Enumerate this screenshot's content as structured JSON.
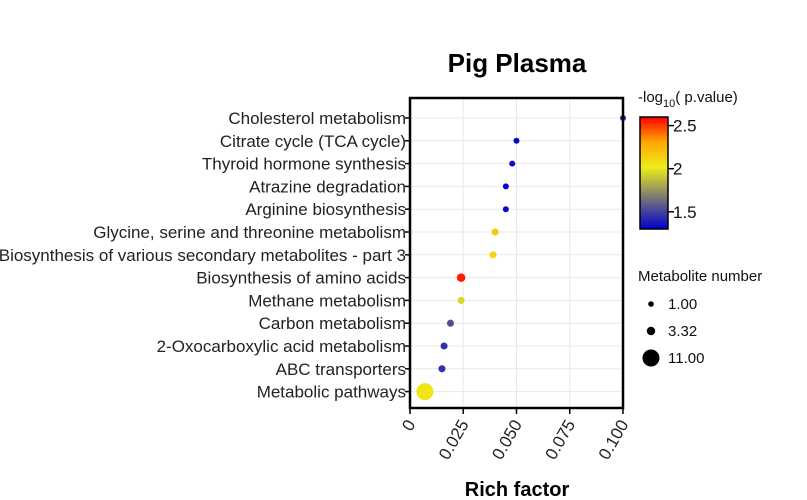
{
  "chart_data": {
    "type": "scatter",
    "title": "Pig Plasma",
    "xlabel": "Rich factor",
    "ylabel": "",
    "xlim": [
      0,
      0.1
    ],
    "xticks": [
      {
        "value": 0,
        "label": "0"
      },
      {
        "value": 0.025,
        "label": "0.025"
      },
      {
        "value": 0.05,
        "label": "0.050"
      },
      {
        "value": 0.075,
        "label": "0.075"
      },
      {
        "value": 0.1,
        "label": "0.100"
      }
    ],
    "categories": [
      "Cholesterol metabolism",
      "Citrate cycle (TCA cycle)",
      "Thyroid hormone synthesis",
      "Atrazine degradation",
      "Arginine biosynthesis",
      "Glycine, serine and threonine metabolism",
      "Biosynthesis of various secondary metabolites - part 3",
      "Biosynthesis of amino acids",
      "Methane metabolism",
      "Carbon metabolism",
      "2-Oxocarboxylic acid metabolism",
      "ABC transporters",
      "Metabolic pathways"
    ],
    "points": [
      {
        "category": "Cholesterol metabolism",
        "rich_factor": 0.1,
        "neg_log10_p": 1.4,
        "metabolite_number": 1
      },
      {
        "category": "Citrate cycle (TCA cycle)",
        "rich_factor": 0.05,
        "neg_log10_p": 1.32,
        "metabolite_number": 1
      },
      {
        "category": "Thyroid hormone synthesis",
        "rich_factor": 0.048,
        "neg_log10_p": 1.33,
        "metabolite_number": 1
      },
      {
        "category": "Atrazine degradation",
        "rich_factor": 0.045,
        "neg_log10_p": 1.3,
        "metabolite_number": 1
      },
      {
        "category": "Arginine biosynthesis",
        "rich_factor": 0.045,
        "neg_log10_p": 1.32,
        "metabolite_number": 1
      },
      {
        "category": "Glycine, serine and threonine metabolism",
        "rich_factor": 0.04,
        "neg_log10_p": 2.15,
        "metabolite_number": 2
      },
      {
        "category": "Biosynthesis of various secondary metabolites - part 3",
        "rich_factor": 0.039,
        "neg_log10_p": 2.1,
        "metabolite_number": 2
      },
      {
        "category": "Biosynthesis of amino acids",
        "rich_factor": 0.024,
        "neg_log10_p": 2.55,
        "metabolite_number": 3.32
      },
      {
        "category": "Methane metabolism",
        "rich_factor": 0.024,
        "neg_log10_p": 1.95,
        "metabolite_number": 2
      },
      {
        "category": "Carbon metabolism",
        "rich_factor": 0.019,
        "neg_log10_p": 1.55,
        "metabolite_number": 2
      },
      {
        "category": "2-Oxocarboxylic acid metabolism",
        "rich_factor": 0.016,
        "neg_log10_p": 1.45,
        "metabolite_number": 2
      },
      {
        "category": "ABC transporters",
        "rich_factor": 0.015,
        "neg_log10_p": 1.45,
        "metabolite_number": 2
      },
      {
        "category": "Metabolic pathways",
        "rich_factor": 0.007,
        "neg_log10_p": 2.05,
        "metabolite_number": 11
      }
    ],
    "color_legend": {
      "title": "-log10( p.value)",
      "title_main": "-log",
      "title_sub": "10",
      "title_rest": "( p.value)",
      "min": 1.3,
      "max": 2.6,
      "ticks": [
        {
          "value": 2.5,
          "label": "2.5"
        },
        {
          "value": 2,
          "label": "2"
        },
        {
          "value": 1.5,
          "label": "1.5"
        }
      ],
      "colors": [
        "#0000cd",
        "#6b6b80",
        "#eded1a",
        "#ffa500",
        "#ff0000"
      ]
    },
    "size_legend": {
      "title": "Metabolite number",
      "items": [
        {
          "value": 1,
          "label": "1.00"
        },
        {
          "value": 3.32,
          "label": "3.32"
        },
        {
          "value": 11,
          "label": "11.00"
        }
      ]
    },
    "grid": true
  }
}
